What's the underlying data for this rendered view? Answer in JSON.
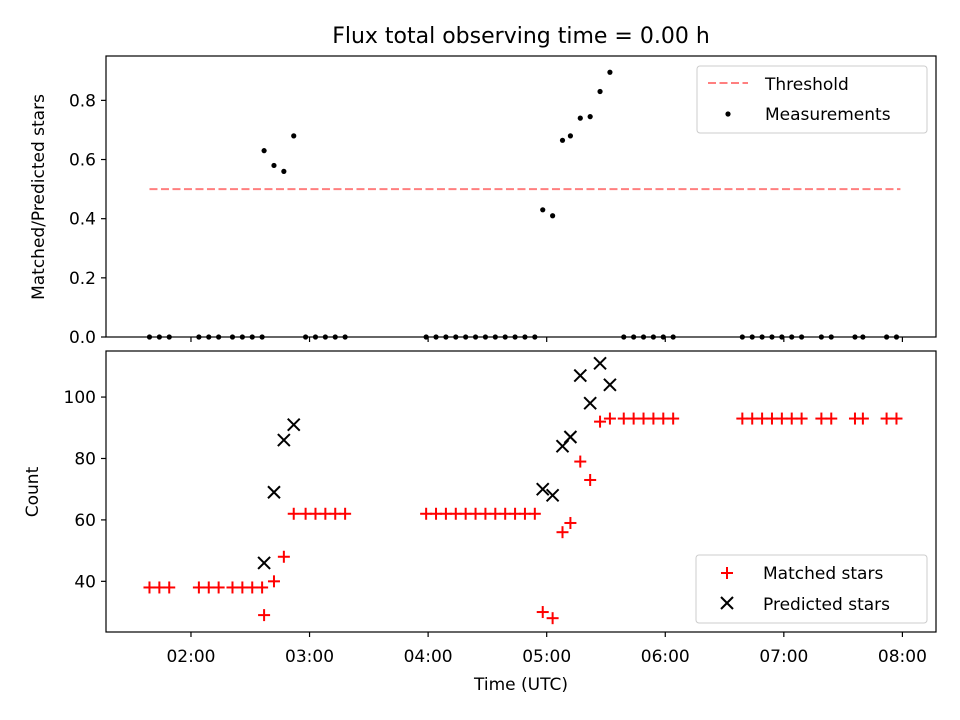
{
  "title": "Flux total observing time = 0.00 h",
  "chart_data": [
    {
      "type": "scatter",
      "ylabel": "Matched/Predicted stars",
      "xlim": [
        "01:17",
        "08:17"
      ],
      "ylim": [
        0,
        0.95
      ],
      "yticks": [
        0.0,
        0.2,
        0.4,
        0.6,
        0.8
      ],
      "ytick_labels": [
        "0.0",
        "0.2",
        "0.4",
        "0.6",
        "0.8"
      ],
      "legend_position": "top-right",
      "series": [
        {
          "name": "Threshold",
          "kind": "line",
          "style": "dashed",
          "color": "#ff7f7f",
          "x": [
            "01:39",
            "07:59"
          ],
          "y": [
            0.5,
            0.5
          ]
        },
        {
          "name": "Measurements",
          "kind": "scatter",
          "marker": "dot",
          "color": "#000000",
          "x": [
            "01:39",
            "01:44",
            "01:49",
            "02:04",
            "02:09",
            "02:14",
            "02:21",
            "02:26",
            "02:31",
            "02:36",
            "02:37",
            "02:42",
            "02:47",
            "02:52",
            "02:58",
            "03:03",
            "03:08",
            "03:13",
            "03:18",
            "03:59",
            "04:04",
            "04:09",
            "04:14",
            "04:19",
            "04:24",
            "04:29",
            "04:34",
            "04:39",
            "04:44",
            "04:49",
            "04:54",
            "04:58",
            "05:03",
            "05:08",
            "05:12",
            "05:17",
            "05:22",
            "05:27",
            "05:32",
            "05:39",
            "05:44",
            "05:49",
            "05:54",
            "05:59",
            "06:04",
            "06:39",
            "06:44",
            "06:49",
            "06:54",
            "06:59",
            "07:04",
            "07:09",
            "07:19",
            "07:24",
            "07:36",
            "07:40",
            "07:52",
            "07:57"
          ],
          "y": [
            0,
            0,
            0,
            0,
            0,
            0,
            0,
            0,
            0,
            0,
            0.63,
            0.58,
            0.56,
            0.68,
            0,
            0,
            0,
            0,
            0,
            0,
            0,
            0,
            0,
            0,
            0,
            0,
            0,
            0,
            0,
            0,
            0,
            0.43,
            0.41,
            0.665,
            0.68,
            0.74,
            0.745,
            0.83,
            0.895,
            0,
            0,
            0,
            0,
            0,
            0,
            0,
            0,
            0,
            0,
            0,
            0,
            0,
            0,
            0,
            0,
            0,
            0,
            0
          ]
        }
      ]
    },
    {
      "type": "scatter",
      "xlabel": "Time (UTC)",
      "ylabel": "Count",
      "xlim": [
        "01:17",
        "08:17"
      ],
      "ylim": [
        23.5,
        115
      ],
      "xticks": [
        "02:00",
        "03:00",
        "04:00",
        "05:00",
        "06:00",
        "07:00",
        "08:00"
      ],
      "yticks": [
        40,
        60,
        80,
        100
      ],
      "ytick_labels": [
        "40",
        "60",
        "80",
        "100"
      ],
      "legend_position": "bottom-right",
      "series": [
        {
          "name": "Matched stars",
          "kind": "scatter",
          "marker": "plus",
          "color": "#ff0000",
          "x": [
            "01:39",
            "01:44",
            "01:49",
            "02:04",
            "02:09",
            "02:14",
            "02:21",
            "02:26",
            "02:31",
            "02:36",
            "02:37",
            "02:42",
            "02:47",
            "02:52",
            "02:58",
            "03:03",
            "03:08",
            "03:13",
            "03:18",
            "03:59",
            "04:04",
            "04:09",
            "04:14",
            "04:19",
            "04:24",
            "04:29",
            "04:34",
            "04:39",
            "04:44",
            "04:49",
            "04:54",
            "04:58",
            "05:03",
            "05:08",
            "05:12",
            "05:17",
            "05:22",
            "05:27",
            "05:32",
            "05:39",
            "05:44",
            "05:49",
            "05:54",
            "05:59",
            "06:04",
            "06:39",
            "06:44",
            "06:49",
            "06:54",
            "06:59",
            "07:04",
            "07:09",
            "07:19",
            "07:24",
            "07:36",
            "07:40",
            "07:52",
            "07:57"
          ],
          "y": [
            38,
            38,
            38,
            38,
            38,
            38,
            38,
            38,
            38,
            38,
            29,
            40,
            48,
            62,
            62,
            62,
            62,
            62,
            62,
            62,
            62,
            62,
            62,
            62,
            62,
            62,
            62,
            62,
            62,
            62,
            62,
            30,
            28,
            56,
            59,
            79,
            73,
            92,
            93,
            93,
            93,
            93,
            93,
            93,
            93,
            93,
            93,
            93,
            93,
            93,
            93,
            93,
            93,
            93,
            93,
            93,
            93,
            93
          ]
        },
        {
          "name": "Predicted stars",
          "kind": "scatter",
          "marker": "x",
          "color": "#000000",
          "x": [
            "02:37",
            "02:42",
            "02:47",
            "02:52",
            "04:58",
            "05:03",
            "05:08",
            "05:12",
            "05:17",
            "05:22",
            "05:27",
            "05:32"
          ],
          "y": [
            46,
            69,
            86,
            91,
            70,
            68,
            84,
            87,
            107,
            98,
            111,
            104
          ]
        }
      ]
    }
  ]
}
